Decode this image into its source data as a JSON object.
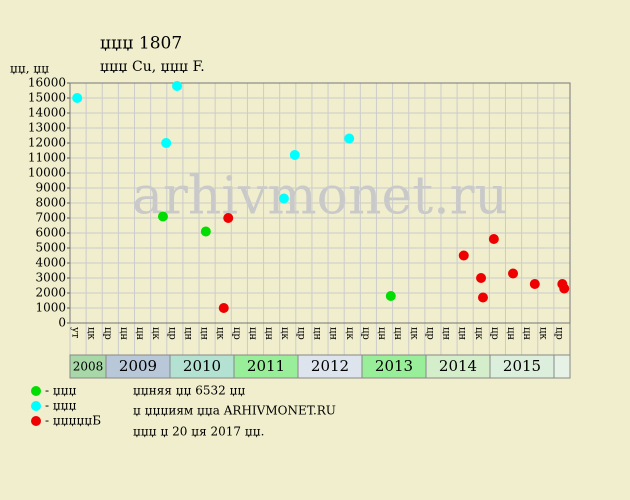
{
  "chart_data": {
    "type": "scatter",
    "title": "џџџ 1807",
    "subtitle": "џџџ Cu, џџџ F.",
    "y_label": "џџ, џџ",
    "watermark": "arhivmonet.ru",
    "notes": [
      "џџняя џџ 6532 џџ",
      "џ џџџиям џџа ARHIVMONET.RU",
      "џџџ џ 20 џя 2017 џџ."
    ],
    "xlim": [
      2008.4375,
      2016.25
    ],
    "ylim": [
      0,
      16000
    ],
    "yticks": [
      0,
      1000,
      2000,
      3000,
      4000,
      5000,
      6000,
      7000,
      8000,
      9000,
      10000,
      11000,
      12000,
      13000,
      14000,
      15000,
      16000
    ],
    "grid": true,
    "columns": [
      "ут",
      "цк",
      "цр",
      "цн",
      "цн",
      "цк",
      "цр",
      "цн",
      "цн",
      "цк",
      "цр",
      "цн",
      "цн",
      "цк",
      "цр",
      "цн",
      "цн",
      "цк",
      "цр",
      "цн",
      "цн",
      "цк",
      "цр",
      "цн",
      "цн",
      "цк",
      "цр",
      "цн",
      "цн",
      "цк",
      "цр"
    ],
    "years": [
      {
        "value": 2008,
        "label": "2008",
        "color": "#a8d8a8"
      },
      {
        "value": 2009,
        "label": "2009",
        "color": "#b8c8d8"
      },
      {
        "value": 2010,
        "label": "2010",
        "color": "#b4e2d2"
      },
      {
        "value": 2011,
        "label": "2011",
        "color": "#99ee99"
      },
      {
        "value": 2012,
        "label": "2012",
        "color": "#dde4ee"
      },
      {
        "value": 2013,
        "label": "2013",
        "color": "#99ee99"
      },
      {
        "value": 2014,
        "label": "2014",
        "color": "#d4eecc"
      },
      {
        "value": 2015,
        "label": "2015",
        "color": "#dcefdc"
      },
      {
        "value": 2016,
        "label": null,
        "color": "#e6f2e6"
      }
    ],
    "series": [
      {
        "name": "- џџџ",
        "color": "#00dd00",
        "x": [
          2009.89,
          2010.56,
          2013.45
        ],
        "values": [
          7100,
          6100,
          1800
        ]
      },
      {
        "name": "- џџџ",
        "color": "#00ffff",
        "x": [
          2008.55,
          2009.94,
          2010.11,
          2011.78,
          2011.95,
          2012.8
        ],
        "values": [
          15000,
          12000,
          15800,
          8300,
          11200,
          12300
        ]
      },
      {
        "name": "- џџџџџБ",
        "color": "#ee0000",
        "x": [
          2010.84,
          2010.91,
          2014.59,
          2014.86,
          2014.89,
          2015.06,
          2015.36,
          2015.7,
          2016.13,
          2016.16
        ],
        "values": [
          1000,
          7000,
          4500,
          3000,
          1700,
          5600,
          3300,
          2600,
          2600,
          2300
        ]
      }
    ]
  }
}
